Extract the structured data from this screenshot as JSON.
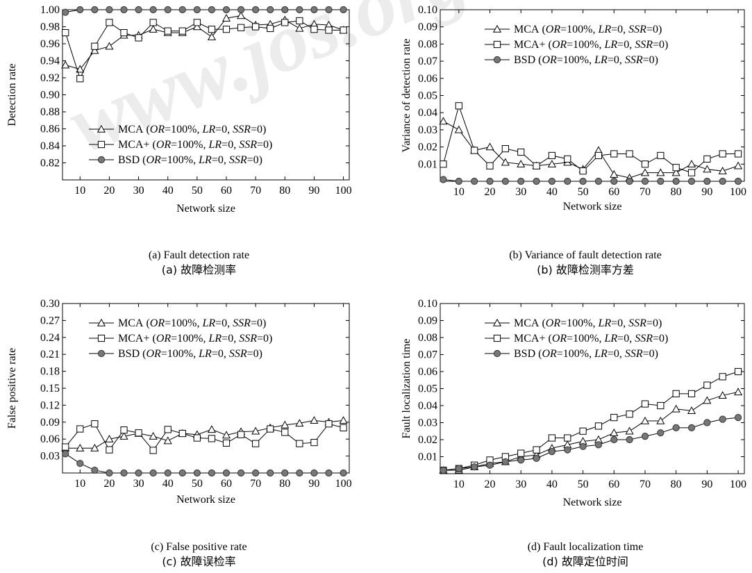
{
  "watermark": "www.jos.org.cn",
  "chart_data": [
    {
      "type": "line",
      "caption_en": "(a) Fault detection rate",
      "caption_zh": "(a)  故障检测率",
      "xlabel": "Network size",
      "ylabel": "Detection rate",
      "xlim": [
        4,
        102
      ],
      "ylim": [
        0.8,
        1.0
      ],
      "xticks": [
        "10",
        "20",
        "30",
        "40",
        "50",
        "60",
        "70",
        "80",
        "90",
        "100"
      ],
      "yticks": [
        "0.82",
        "0.84",
        "0.86",
        "0.88",
        "0.90",
        "0.92",
        "0.94",
        "0.96",
        "0.98",
        "1.00"
      ],
      "legend_position": "bottom-left",
      "series": [
        {
          "name": "MCA",
          "marker": "triangle",
          "x": [
            5,
            10,
            15,
            20,
            25,
            30,
            35,
            40,
            45,
            50,
            55,
            60,
            65,
            70,
            75,
            80,
            85,
            90,
            95,
            100
          ],
          "y": [
            0.935,
            0.93,
            0.952,
            0.957,
            0.97,
            0.97,
            0.977,
            0.973,
            0.973,
            0.98,
            0.968,
            0.99,
            0.993,
            0.982,
            0.983,
            0.988,
            0.978,
            0.983,
            0.982,
            0.976
          ]
        },
        {
          "name": "MCA+",
          "marker": "square",
          "x": [
            5,
            10,
            15,
            20,
            25,
            30,
            35,
            40,
            45,
            50,
            55,
            60,
            65,
            70,
            75,
            80,
            85,
            90,
            95,
            100
          ],
          "y": [
            0.973,
            0.919,
            0.957,
            0.985,
            0.973,
            0.967,
            0.985,
            0.975,
            0.975,
            0.985,
            0.977,
            0.977,
            0.979,
            0.98,
            0.978,
            0.985,
            0.987,
            0.977,
            0.976,
            0.976
          ]
        },
        {
          "name": "BSD",
          "marker": "circle",
          "x": [
            5,
            10,
            15,
            20,
            25,
            30,
            35,
            40,
            45,
            50,
            55,
            60,
            65,
            70,
            75,
            80,
            85,
            90,
            95,
            100
          ],
          "y": [
            0.997,
            1.0,
            1.0,
            1.0,
            1.0,
            1.0,
            1.0,
            1.0,
            1.0,
            1.0,
            1.0,
            1.0,
            1.0,
            1.0,
            1.0,
            1.0,
            1.0,
            1.0,
            1.0,
            1.0
          ]
        }
      ]
    },
    {
      "type": "line",
      "caption_en": "(b) Variance of fault detection rate",
      "caption_zh": "(b)  故障检测率方差",
      "xlabel": "Network size",
      "ylabel": "Variance of detection rate",
      "xlim": [
        4,
        102
      ],
      "ylim": [
        0.0,
        0.1
      ],
      "xticks": [
        "10",
        "20",
        "30",
        "40",
        "50",
        "60",
        "70",
        "80",
        "90",
        "100"
      ],
      "yticks": [
        "0.01",
        "0.02",
        "0.03",
        "0.04",
        "0.05",
        "0.06",
        "0.07",
        "0.08",
        "0.09",
        "0.10"
      ],
      "legend_position": "top-left",
      "series": [
        {
          "name": "MCA",
          "marker": "triangle",
          "x": [
            5,
            10,
            15,
            20,
            25,
            30,
            35,
            40,
            45,
            50,
            55,
            60,
            65,
            70,
            75,
            80,
            85,
            90,
            95,
            100
          ],
          "y": [
            0.035,
            0.03,
            0.018,
            0.02,
            0.011,
            0.01,
            0.009,
            0.01,
            0.011,
            0.007,
            0.018,
            0.004,
            0.002,
            0.005,
            0.005,
            0.005,
            0.01,
            0.007,
            0.006,
            0.009
          ]
        },
        {
          "name": "MCA+",
          "marker": "square",
          "x": [
            5,
            10,
            15,
            20,
            25,
            30,
            35,
            40,
            45,
            50,
            55,
            60,
            65,
            70,
            75,
            80,
            85,
            90,
            95,
            100
          ],
          "y": [
            0.01,
            0.044,
            0.018,
            0.009,
            0.019,
            0.017,
            0.009,
            0.015,
            0.013,
            0.006,
            0.015,
            0.016,
            0.016,
            0.01,
            0.015,
            0.008,
            0.005,
            0.013,
            0.016,
            0.016
          ]
        },
        {
          "name": "BSD",
          "marker": "circle",
          "x": [
            5,
            10,
            15,
            20,
            25,
            30,
            35,
            40,
            45,
            50,
            55,
            60,
            65,
            70,
            75,
            80,
            85,
            90,
            95,
            100
          ],
          "y": [
            0.001,
            0.0,
            0.0,
            0.0,
            0.0,
            0.0,
            0.0,
            0.0,
            0.0,
            0.0,
            0.0,
            0.0,
            0.0,
            0.0,
            0.0,
            0.0,
            0.0,
            0.0,
            0.0,
            0.0
          ]
        }
      ]
    },
    {
      "type": "line",
      "caption_en": "(c) False positive rate",
      "caption_zh": "(c)  故障误检率",
      "xlabel": "Network size",
      "ylabel": "False positive rate",
      "xlim": [
        4,
        102
      ],
      "ylim": [
        0.0,
        0.3
      ],
      "xticks": [
        "10",
        "20",
        "30",
        "40",
        "50",
        "60",
        "70",
        "80",
        "90",
        "100"
      ],
      "yticks": [
        "0.03",
        "0.06",
        "0.09",
        "0.12",
        "0.15",
        "0.18",
        "0.21",
        "0.24",
        "0.27",
        "0.30"
      ],
      "legend_position": "top-left",
      "series": [
        {
          "name": "MCA",
          "marker": "triangle",
          "x": [
            5,
            10,
            15,
            20,
            25,
            30,
            35,
            40,
            45,
            50,
            55,
            60,
            65,
            70,
            75,
            80,
            85,
            90,
            95,
            100
          ],
          "y": [
            0.044,
            0.044,
            0.044,
            0.06,
            0.065,
            0.07,
            0.065,
            0.057,
            0.07,
            0.068,
            0.077,
            0.067,
            0.073,
            0.074,
            0.08,
            0.085,
            0.088,
            0.093,
            0.09,
            0.093
          ]
        },
        {
          "name": "MCA+",
          "marker": "square",
          "x": [
            5,
            10,
            15,
            20,
            25,
            30,
            35,
            40,
            45,
            50,
            55,
            60,
            65,
            70,
            75,
            80,
            85,
            90,
            95,
            100
          ],
          "y": [
            0.046,
            0.078,
            0.087,
            0.041,
            0.076,
            0.071,
            0.04,
            0.077,
            0.07,
            0.062,
            0.061,
            0.053,
            0.068,
            0.052,
            0.078,
            0.072,
            0.052,
            0.054,
            0.087,
            0.08
          ]
        },
        {
          "name": "BSD",
          "marker": "circle",
          "x": [
            5,
            10,
            15,
            20,
            25,
            30,
            35,
            40,
            45,
            50,
            55,
            60,
            65,
            70,
            75,
            80,
            85,
            90,
            95,
            100
          ],
          "y": [
            0.034,
            0.017,
            0.005,
            0.0,
            0.0,
            0.0,
            0.0,
            0.0,
            0.0,
            0.0,
            0.0,
            0.0,
            0.0,
            0.0,
            0.0,
            0.0,
            0.0,
            0.0,
            0.0,
            0.0
          ]
        }
      ]
    },
    {
      "type": "line",
      "caption_en": "(d) Fault localization time",
      "caption_zh": "(d)  故障定位时间",
      "xlabel": "Network size",
      "ylabel": "Fault localization time",
      "xlim": [
        4,
        102
      ],
      "ylim": [
        0.0,
        0.1
      ],
      "xticks": [
        "10",
        "20",
        "30",
        "40",
        "50",
        "60",
        "70",
        "80",
        "90",
        "100"
      ],
      "yticks": [
        "0.01",
        "0.02",
        "0.03",
        "0.04",
        "0.05",
        "0.06",
        "0.07",
        "0.08",
        "0.09",
        "0.10"
      ],
      "legend_position": "top-left",
      "series": [
        {
          "name": "MCA",
          "marker": "triangle",
          "x": [
            5,
            10,
            15,
            20,
            25,
            30,
            35,
            40,
            45,
            50,
            55,
            60,
            65,
            70,
            75,
            80,
            85,
            90,
            95,
            100
          ],
          "y": [
            0.002,
            0.002,
            0.004,
            0.006,
            0.007,
            0.01,
            0.011,
            0.015,
            0.017,
            0.019,
            0.02,
            0.024,
            0.025,
            0.031,
            0.031,
            0.038,
            0.037,
            0.043,
            0.046,
            0.048
          ]
        },
        {
          "name": "MCA+",
          "marker": "square",
          "x": [
            5,
            10,
            15,
            20,
            25,
            30,
            35,
            40,
            45,
            50,
            55,
            60,
            65,
            70,
            75,
            80,
            85,
            90,
            95,
            100
          ],
          "y": [
            0.002,
            0.003,
            0.005,
            0.008,
            0.01,
            0.012,
            0.014,
            0.021,
            0.021,
            0.025,
            0.028,
            0.033,
            0.035,
            0.041,
            0.04,
            0.047,
            0.047,
            0.052,
            0.057,
            0.06
          ]
        },
        {
          "name": "BSD",
          "marker": "circle",
          "x": [
            5,
            10,
            15,
            20,
            25,
            30,
            35,
            40,
            45,
            50,
            55,
            60,
            65,
            70,
            75,
            80,
            85,
            90,
            95,
            100
          ],
          "y": [
            0.002,
            0.003,
            0.004,
            0.005,
            0.007,
            0.008,
            0.009,
            0.013,
            0.014,
            0.016,
            0.017,
            0.02,
            0.02,
            0.022,
            0.024,
            0.027,
            0.027,
            0.03,
            0.032,
            0.033
          ]
        }
      ]
    }
  ],
  "legend_params": {
    "open": "(",
    "or_label": "OR",
    "or_value": "=100%, ",
    "lr_label": "LR",
    "lr_value": "=0, ",
    "ssr_label": "SSR",
    "ssr_value": "=0)"
  }
}
